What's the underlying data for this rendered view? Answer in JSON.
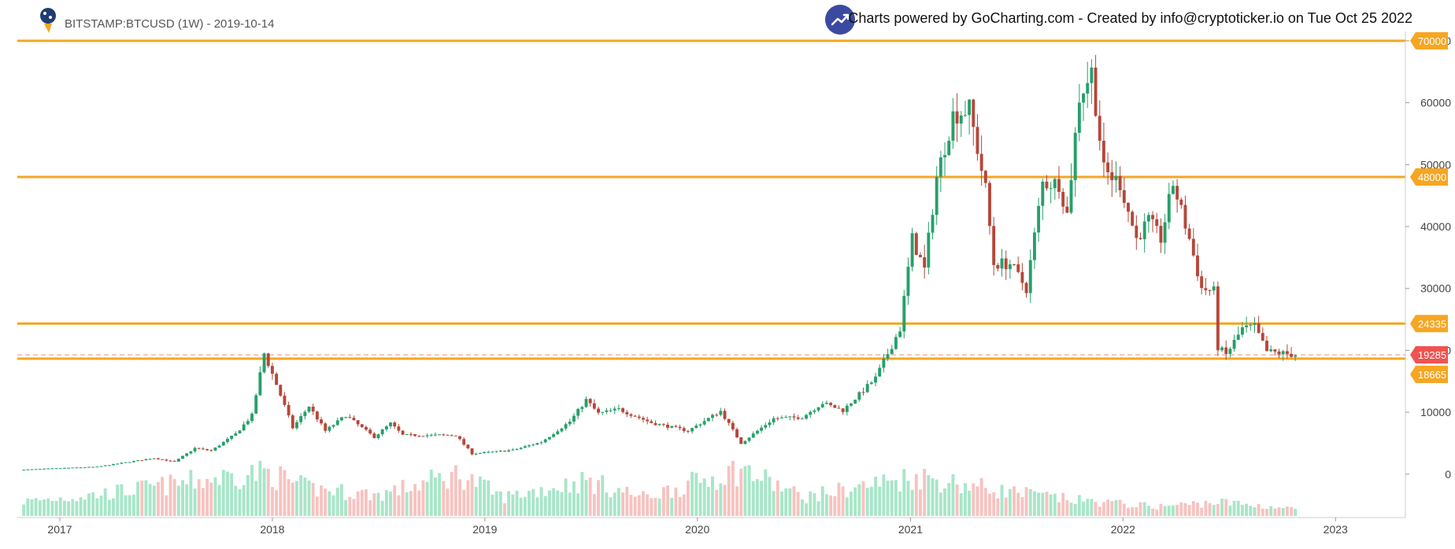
{
  "header": {
    "title": "BITSTAMP:BTCUSD (1W) - 2019-10-14",
    "credit": "Charts powered by GoCharting.com - Created by info@cryptoticker.io on Tue Oct 25 2022"
  },
  "colors": {
    "up": "#26a06a",
    "down": "#b5473a",
    "vol_up": "#a8e6c8",
    "vol_down": "#f6c3c0",
    "level": "#f5a623",
    "price_line": "#f08a80",
    "price_tag": "#ef5350"
  },
  "chart_data": {
    "type": "candlestick",
    "symbol": "BITSTAMP:BTCUSD",
    "interval": "1W",
    "x_ticks": [
      "2017",
      "2018",
      "2019",
      "2020",
      "2021",
      "2022",
      "2023"
    ],
    "x_tick_dates": [
      "2017-01-01",
      "2018-01-01",
      "2019-01-01",
      "2020-01-01",
      "2021-01-01",
      "2022-01-01",
      "2023-01-01"
    ],
    "x_range": [
      "2016-10-20",
      "2023-05-01"
    ],
    "y_ticks": [
      0,
      10000,
      20000,
      30000,
      40000,
      50000,
      60000,
      70000
    ],
    "y_tick_labels": [
      "0",
      "10000",
      "20000",
      "30000",
      "40000",
      "50000",
      "60000",
      "70000"
    ],
    "ylim": [
      -7000,
      71000
    ],
    "horizontal_levels": [
      {
        "value": 70000,
        "label": "70000"
      },
      {
        "value": 48000,
        "label": "48000"
      },
      {
        "value": 24335,
        "label": "24335"
      },
      {
        "value": 18665,
        "label": "18665"
      }
    ],
    "last_price": {
      "value": 19285,
      "label": "19285"
    },
    "price_path": [
      [
        "2016-10-24",
        700
      ],
      [
        "2016-12-26",
        950
      ],
      [
        "2017-03-06",
        1200
      ],
      [
        "2017-05-22",
        2300
      ],
      [
        "2017-06-12",
        2600
      ],
      [
        "2017-07-17",
        2000
      ],
      [
        "2017-08-21",
        4200
      ],
      [
        "2017-09-18",
        3800
      ],
      [
        "2017-10-30",
        6500
      ],
      [
        "2017-11-27",
        9500
      ],
      [
        "2017-12-18",
        19500
      ],
      [
        "2018-01-08",
        14500
      ],
      [
        "2018-02-05",
        7500
      ],
      [
        "2018-03-05",
        11000
      ],
      [
        "2018-04-02",
        7000
      ],
      [
        "2018-05-07",
        9500
      ],
      [
        "2018-06-25",
        6000
      ],
      [
        "2018-07-23",
        8200
      ],
      [
        "2018-08-13",
        6300
      ],
      [
        "2018-11-12",
        6300
      ],
      [
        "2018-12-10",
        3300
      ],
      [
        "2019-02-18",
        3900
      ],
      [
        "2019-04-08",
        5200
      ],
      [
        "2019-05-27",
        8500
      ],
      [
        "2019-06-24",
        12000
      ],
      [
        "2019-07-15",
        9800
      ],
      [
        "2019-08-19",
        10500
      ],
      [
        "2019-10-14",
        8300
      ],
      [
        "2019-12-16",
        7000
      ],
      [
        "2020-02-10",
        10200
      ],
      [
        "2020-03-16",
        5000
      ],
      [
        "2020-05-11",
        9000
      ],
      [
        "2020-06-29",
        9200
      ],
      [
        "2020-08-03",
        11500
      ],
      [
        "2020-09-07",
        10300
      ],
      [
        "2020-11-02",
        15500
      ],
      [
        "2020-12-14",
        23500
      ],
      [
        "2021-01-04",
        38000
      ],
      [
        "2021-01-25",
        33000
      ],
      [
        "2021-02-15",
        48000
      ],
      [
        "2021-03-15",
        58000
      ],
      [
        "2021-04-12",
        59000
      ],
      [
        "2021-05-10",
        46000
      ],
      [
        "2021-05-24",
        34000
      ],
      [
        "2021-06-21",
        34000
      ],
      [
        "2021-07-19",
        30000
      ],
      [
        "2021-08-16",
        47000
      ],
      [
        "2021-09-13",
        47000
      ],
      [
        "2021-09-27",
        42000
      ],
      [
        "2021-10-18",
        61000
      ],
      [
        "2021-11-08",
        65000
      ],
      [
        "2021-11-29",
        49000
      ],
      [
        "2021-12-27",
        47000
      ],
      [
        "2022-01-24",
        38000
      ],
      [
        "2022-02-14",
        41000
      ],
      [
        "2022-03-07",
        38000
      ],
      [
        "2022-03-28",
        47000
      ],
      [
        "2022-04-25",
        38000
      ],
      [
        "2022-05-16",
        30000
      ],
      [
        "2022-06-06",
        29500
      ],
      [
        "2022-06-13",
        20500
      ],
      [
        "2022-06-27",
        19300
      ],
      [
        "2022-07-25",
        23500
      ],
      [
        "2022-08-15",
        23800
      ],
      [
        "2022-09-05",
        19800
      ],
      [
        "2022-10-24",
        19285
      ]
    ],
    "volume_path": [
      [
        "2016-10-24",
        0.3
      ],
      [
        "2017-03-01",
        0.45
      ],
      [
        "2017-06-01",
        0.6
      ],
      [
        "2017-12-18",
        0.95
      ],
      [
        "2018-03-01",
        0.6
      ],
      [
        "2018-07-01",
        0.45
      ],
      [
        "2018-11-19",
        0.9
      ],
      [
        "2019-02-01",
        0.4
      ],
      [
        "2019-06-24",
        0.75
      ],
      [
        "2019-10-01",
        0.4
      ],
      [
        "2020-03-16",
        1.0
      ],
      [
        "2020-07-01",
        0.4
      ],
      [
        "2021-01-11",
        0.85
      ],
      [
        "2021-06-01",
        0.55
      ],
      [
        "2021-10-01",
        0.35
      ],
      [
        "2022-03-01",
        0.2
      ],
      [
        "2022-06-13",
        0.3
      ],
      [
        "2022-10-24",
        0.15
      ]
    ]
  }
}
